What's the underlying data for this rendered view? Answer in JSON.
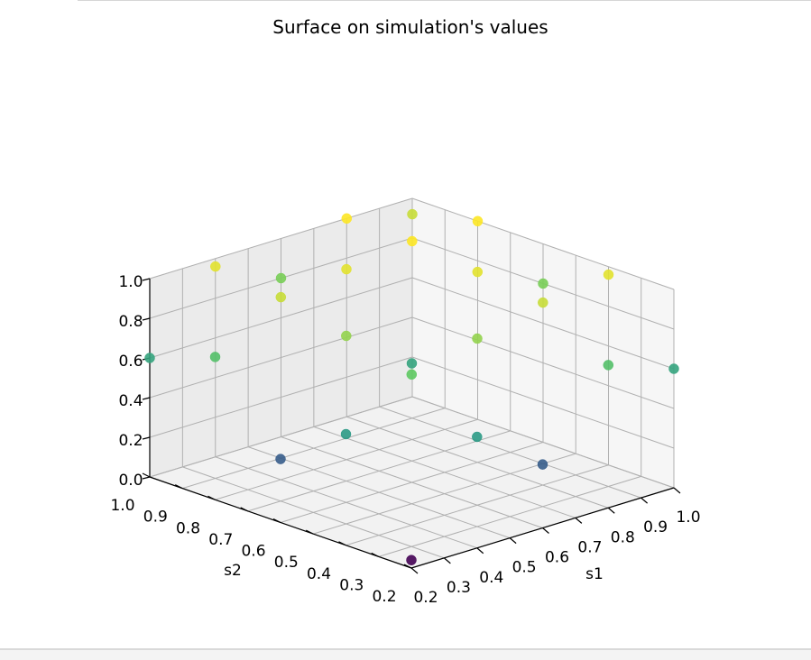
{
  "chart_data": {
    "type": "scatter",
    "dimension": "3d",
    "title": "Surface on simulation's values",
    "xlabel": "s1",
    "ylabel": "s2",
    "zlabel": "",
    "xlim": [
      0.2,
      1.0
    ],
    "ylim": [
      0.2,
      1.0
    ],
    "zlim": [
      0.0,
      1.0
    ],
    "x_ticks": [
      "0.2",
      "0.3",
      "0.4",
      "0.5",
      "0.6",
      "0.7",
      "0.8",
      "0.9",
      "1.0"
    ],
    "y_ticks": [
      "0.2",
      "0.3",
      "0.4",
      "0.5",
      "0.6",
      "0.7",
      "0.8",
      "0.9",
      "1.0"
    ],
    "z_ticks": [
      "0.0",
      "0.2",
      "0.4",
      "0.6",
      "0.8",
      "1.0"
    ],
    "grid": true,
    "colormap": "viridis",
    "color_by": "z",
    "points": [
      {
        "s1": 0.2,
        "s2": 0.2,
        "z": 0.04
      },
      {
        "s1": 0.6,
        "s2": 0.2,
        "z": 0.32
      },
      {
        "s1": 1.0,
        "s2": 0.2,
        "z": 0.6
      },
      {
        "s1": 0.2,
        "s2": 0.6,
        "z": 0.32
      },
      {
        "s1": 0.6,
        "s2": 0.6,
        "z": 0.6
      },
      {
        "s1": 1.0,
        "s2": 0.6,
        "z": 0.8
      },
      {
        "s1": 0.2,
        "s2": 1.0,
        "z": 0.6
      },
      {
        "s1": 0.6,
        "s2": 1.0,
        "z": 0.8
      },
      {
        "s1": 1.0,
        "s2": 1.0,
        "z": 0.92
      },
      {
        "s1": 0.4,
        "s2": 0.2,
        "z": 0.56
      },
      {
        "s1": 0.8,
        "s2": 0.2,
        "z": 0.72
      },
      {
        "s1": 0.2,
        "s2": 0.4,
        "z": 0.56
      },
      {
        "s1": 0.6,
        "s2": 0.4,
        "z": 0.84
      },
      {
        "s1": 1.0,
        "s2": 0.4,
        "z": 0.96
      },
      {
        "s1": 0.4,
        "s2": 0.6,
        "z": 0.84
      },
      {
        "s1": 0.8,
        "s2": 0.6,
        "z": 0.96
      },
      {
        "s1": 0.2,
        "s2": 0.8,
        "z": 0.72
      },
      {
        "s1": 0.6,
        "s2": 0.8,
        "z": 0.96
      },
      {
        "s1": 1.0,
        "s2": 0.8,
        "z": 1.0
      },
      {
        "s1": 0.4,
        "s2": 1.0,
        "z": 0.96
      },
      {
        "s1": 0.8,
        "s2": 1.0,
        "z": 1.0
      },
      {
        "s1": 0.4,
        "s2": 0.4,
        "z": 0.76
      },
      {
        "s1": 0.8,
        "s2": 0.8,
        "z": 1.0
      },
      {
        "s1": 0.4,
        "s2": 0.8,
        "z": 0.92
      },
      {
        "s1": 0.8,
        "s2": 0.4,
        "z": 0.92
      }
    ]
  }
}
